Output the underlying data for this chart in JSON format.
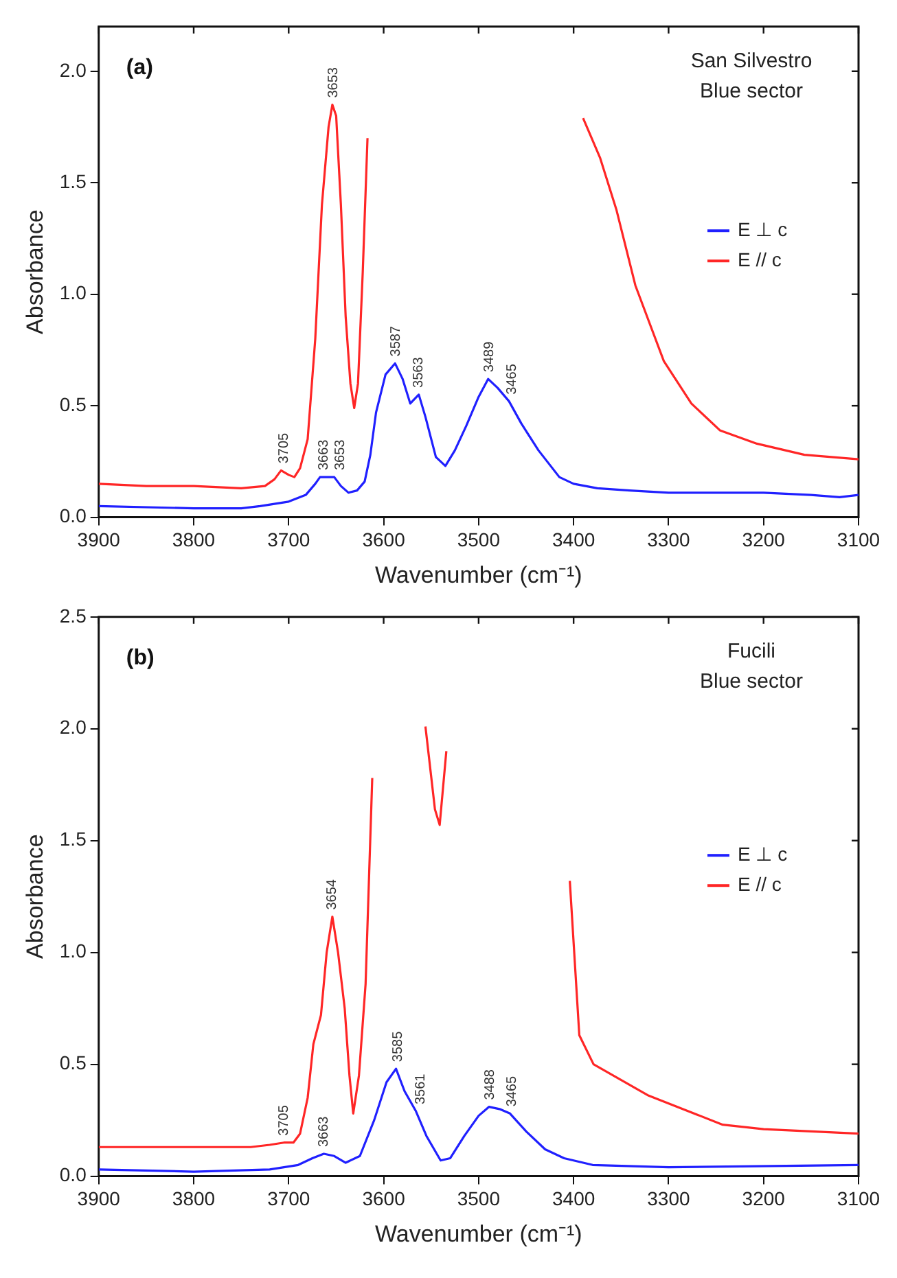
{
  "chart_data": [
    {
      "type": "line",
      "xlabel": "Wavenumber (cm⁻¹)",
      "ylabel": "Absorbance",
      "xlim": [
        3900,
        3100
      ],
      "xticks": [
        3900,
        3800,
        3700,
        3600,
        3500,
        3400,
        3300,
        3200,
        3100
      ],
      "ylim": [
        0,
        2.2
      ],
      "yticks": [
        {
          "value": 0,
          "label": "0.0"
        },
        {
          "value": 0.5,
          "label": "0.5"
        },
        {
          "value": 1,
          "label": "1.0"
        },
        {
          "value": 1.5,
          "label": "1.5"
        },
        {
          "value": 2,
          "label": "2.0"
        }
      ],
      "grid": false,
      "legend": "right",
      "marker": "none",
      "line_style": "solid",
      "series": [
        {
          "name": "E ⊥ c",
          "color": "#2020ff",
          "x": [
            3900,
            3800,
            3750,
            3730,
            3700,
            3682,
            3672,
            3667,
            3660,
            3652,
            3645,
            3637,
            3628,
            3620,
            3614,
            3608,
            3598,
            3588,
            3580,
            3572,
            3563,
            3556,
            3545,
            3535,
            3525,
            3513,
            3500,
            3490,
            3480,
            3468,
            3455,
            3437,
            3415,
            3400,
            3375,
            3341,
            3300,
            3200,
            3150,
            3120,
            3100
          ],
          "values": [
            0.05,
            0.04,
            0.04,
            0.05,
            0.07,
            0.1,
            0.15,
            0.18,
            0.18,
            0.18,
            0.14,
            0.11,
            0.12,
            0.16,
            0.28,
            0.47,
            0.64,
            0.69,
            0.62,
            0.51,
            0.55,
            0.45,
            0.27,
            0.23,
            0.3,
            0.41,
            0.54,
            0.62,
            0.58,
            0.52,
            0.42,
            0.3,
            0.18,
            0.15,
            0.13,
            0.12,
            0.11,
            0.11,
            0.1,
            0.09,
            0.1
          ]
        },
        {
          "name": "E // c",
          "color": "#ff2626",
          "x": [
            3900,
            3850,
            3800,
            3750,
            3725,
            3715,
            3708,
            3700,
            3694,
            3688,
            3680,
            3672,
            3665,
            3658,
            3654,
            3650,
            3645,
            3640,
            3635,
            3631,
            3627,
            3622,
            3617,
            3612,
            3549,
            3546,
            3544,
            3542,
            3539,
            3403,
            3390,
            3372,
            3355,
            3335,
            3305,
            3276,
            3246,
            3207,
            3157,
            3100
          ],
          "values": [
            0.15,
            0.14,
            0.14,
            0.13,
            0.14,
            0.17,
            0.21,
            0.19,
            0.18,
            0.22,
            0.35,
            0.8,
            1.4,
            1.75,
            1.85,
            1.8,
            1.4,
            0.9,
            0.6,
            0.49,
            0.6,
            1.1,
            1.7,
            null,
            null,
            null,
            null,
            null,
            null,
            null,
            1.79,
            1.61,
            1.38,
            1.04,
            0.7,
            0.51,
            0.39,
            0.33,
            0.28,
            0.26
          ]
        }
      ],
      "annotations": [
        "(a)",
        "San Silvestro",
        "Blue sector",
        {
          "text": "3705",
          "x": 3705,
          "y": 0.21
        },
        {
          "text": "3653",
          "x": 3653,
          "y": 1.85
        },
        {
          "text": "3663",
          "x": 3663,
          "y": 0.18
        },
        {
          "text": "3653",
          "x": 3653,
          "y": 0.18
        },
        {
          "text": "3587",
          "x": 3587,
          "y": 0.69
        },
        {
          "text": "3563",
          "x": 3563,
          "y": 0.55
        },
        {
          "text": "3489",
          "x": 3489,
          "y": 0.62
        },
        {
          "text": "3465",
          "x": 3465,
          "y": 0.52
        }
      ]
    },
    {
      "type": "line",
      "xlabel": "Wavenumber (cm⁻¹)",
      "ylabel": "Absorbance",
      "xlim": [
        3900,
        3100
      ],
      "xticks": [
        3900,
        3800,
        3700,
        3600,
        3500,
        3400,
        3300,
        3200,
        3100
      ],
      "ylim": [
        0,
        2.5
      ],
      "yticks": [
        {
          "value": 0,
          "label": "0.0"
        },
        {
          "value": 0.5,
          "label": "0.5"
        },
        {
          "value": 1,
          "label": "1.0"
        },
        {
          "value": 1.5,
          "label": "1.5"
        },
        {
          "value": 2,
          "label": "2.0"
        },
        {
          "value": 2.5,
          "label": "2.5"
        }
      ],
      "grid": false,
      "legend": "right",
      "marker": "none",
      "line_style": "solid",
      "series": [
        {
          "name": "E ⊥ c",
          "color": "#2020ff",
          "x": [
            3900,
            3800,
            3720,
            3690,
            3675,
            3663,
            3652,
            3640,
            3625,
            3610,
            3597,
            3587,
            3578,
            3566,
            3555,
            3540,
            3530,
            3515,
            3500,
            3489,
            3478,
            3467,
            3450,
            3430,
            3410,
            3380,
            3300,
            3100
          ],
          "values": [
            0.03,
            0.02,
            0.03,
            0.05,
            0.08,
            0.1,
            0.09,
            0.06,
            0.09,
            0.25,
            0.42,
            0.48,
            0.38,
            0.29,
            0.18,
            0.07,
            0.08,
            0.18,
            0.27,
            0.31,
            0.3,
            0.28,
            0.2,
            0.12,
            0.08,
            0.05,
            0.04,
            0.05
          ]
        },
        {
          "name": "E // c",
          "color": "#ff2626",
          "x": [
            3900,
            3800,
            3740,
            3720,
            3705,
            3695,
            3688,
            3680,
            3674,
            3666,
            3660,
            3654,
            3648,
            3641,
            3636,
            3632,
            3626,
            3619,
            3612,
            3607,
            3563,
            3556,
            3546,
            3541,
            3534,
            3526,
            3418,
            3404,
            3394,
            3379,
            3321,
            3243,
            3200,
            3100
          ],
          "values": [
            0.13,
            0.13,
            0.13,
            0.14,
            0.15,
            0.15,
            0.19,
            0.35,
            0.59,
            0.72,
            1.0,
            1.16,
            1.0,
            0.75,
            0.45,
            0.28,
            0.45,
            0.86,
            1.78,
            null,
            null,
            2.01,
            1.64,
            1.57,
            1.9,
            null,
            null,
            1.32,
            0.63,
            0.5,
            0.36,
            0.23,
            0.21,
            0.19
          ]
        }
      ],
      "annotations": [
        "(b)",
        "Fucili",
        "Blue sector",
        {
          "text": "3705",
          "x": 3705,
          "y": 0.15
        },
        {
          "text": "3654",
          "x": 3654,
          "y": 1.16
        },
        {
          "text": "3663",
          "x": 3663,
          "y": 0.1
        },
        {
          "text": "3585",
          "x": 3585,
          "y": 0.48
        },
        {
          "text": "3561",
          "x": 3561,
          "y": 0.29
        },
        {
          "text": "3488",
          "x": 3488,
          "y": 0.31
        },
        {
          "text": "3465",
          "x": 3465,
          "y": 0.28
        }
      ]
    }
  ]
}
